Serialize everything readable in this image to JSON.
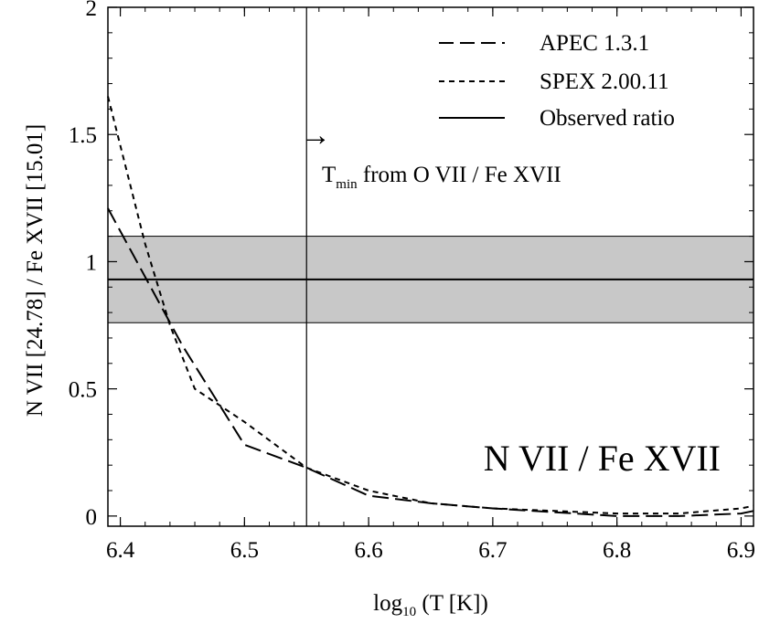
{
  "chart_data": {
    "type": "line",
    "title": "N VII / Fe XVII",
    "xlabel": "log10 (T [K])",
    "xlabel_main": "log",
    "xlabel_sub": "10",
    "xlabel_rest": " (T [K])",
    "ylabel": "N VII [24.78] / Fe XVII [15.01]",
    "xlim": [
      6.39,
      6.91
    ],
    "ylim": [
      -0.04,
      2.0
    ],
    "x_ticks": [
      6.4,
      6.5,
      6.6,
      6.7,
      6.8,
      6.9
    ],
    "x_tick_labels": [
      "6.4",
      "6.5",
      "6.6",
      "6.7",
      "6.8",
      "6.9"
    ],
    "y_ticks": [
      0,
      0.5,
      1,
      1.5,
      2
    ],
    "y_tick_labels": [
      "0",
      "0.5",
      "1",
      "1.5",
      "2"
    ],
    "grid": false,
    "legend_position": "top-right",
    "series": [
      {
        "name": "APEC 1.3.1",
        "style": "long-dash",
        "x": [
          6.39,
          6.45,
          6.5,
          6.55,
          6.6,
          6.65,
          6.7,
          6.75,
          6.8,
          6.85,
          6.9,
          6.91
        ],
        "y": [
          1.21,
          0.67,
          0.28,
          0.19,
          0.08,
          0.05,
          0.03,
          0.015,
          0.0,
          0.0,
          0.01,
          0.02
        ]
      },
      {
        "name": "SPEX 2.00.11",
        "style": "short-dash",
        "x": [
          6.39,
          6.42,
          6.44,
          6.46,
          6.5,
          6.55,
          6.6,
          6.65,
          6.7,
          6.75,
          6.8,
          6.85,
          6.9,
          6.91
        ],
        "y": [
          1.65,
          1.07,
          0.75,
          0.5,
          0.37,
          0.19,
          0.1,
          0.05,
          0.03,
          0.02,
          0.01,
          0.01,
          0.03,
          0.04
        ]
      }
    ],
    "observed_ratio": {
      "name": "Observed ratio",
      "value": 0.93,
      "lower": 0.76,
      "upper": 1.1,
      "band_color": "#c8c8c8"
    },
    "tmin_line": {
      "x": 6.55,
      "label_T": "T",
      "label_sub": "min",
      "label_rest": " from O VII / Fe XVII",
      "arrow": "→"
    }
  }
}
